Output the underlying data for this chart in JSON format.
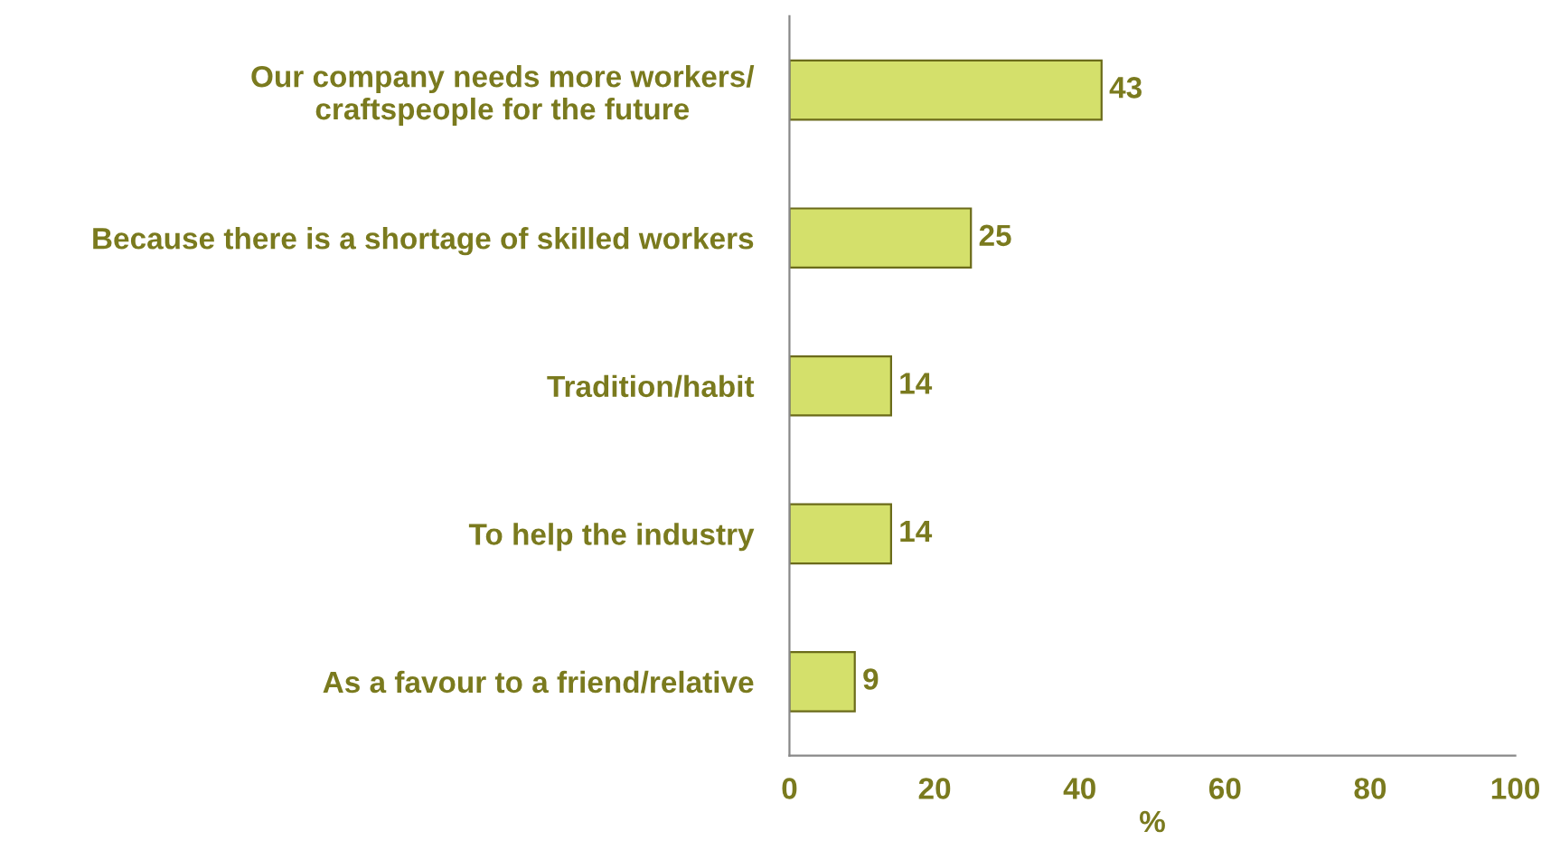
{
  "chart_data": {
    "type": "bar",
    "orientation": "horizontal",
    "xlabel": "%",
    "categories": [
      "Our company needs more workers/\ncraftspeople for the future",
      "Because there is a shortage of skilled workers",
      "Tradition/habit",
      "To help the industry",
      "As a favour to a friend/relative"
    ],
    "values": [
      43,
      25,
      14,
      14,
      9
    ],
    "color": "#d4e06b",
    "xlim": [
      0,
      100
    ],
    "xticks": [
      0,
      20,
      40,
      60,
      80,
      100
    ],
    "data_labels": true,
    "grid": false,
    "legend": false
  }
}
